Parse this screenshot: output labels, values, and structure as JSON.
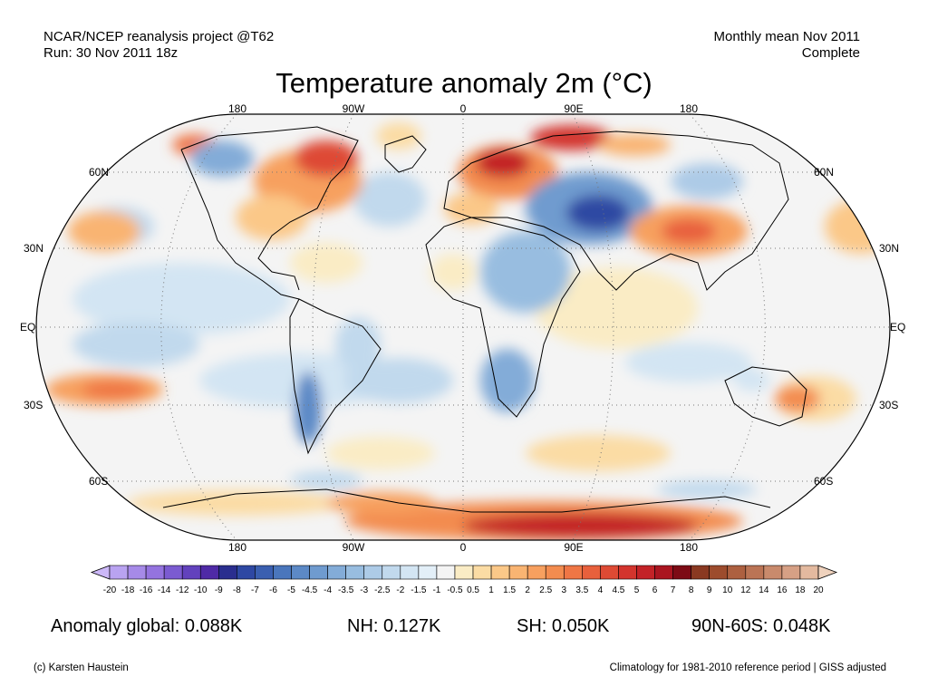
{
  "header": {
    "top_left_line1": "NCAR/NCEP reanalysis project @T62",
    "top_left_line2": "Run: 30 Nov 2011 18z",
    "top_right_line1": "Monthly mean Nov 2011",
    "top_right_line2": "Complete"
  },
  "title": "Temperature anomaly 2m (°C)",
  "map": {
    "projection": "Robinson",
    "longitude_labels": [
      "180",
      "90W",
      "0",
      "90E",
      "180"
    ],
    "latitude_labels": [
      "60N",
      "30N",
      "EQ",
      "30S",
      "60S"
    ],
    "gridlines": "dotted",
    "colors": {
      "ocean_neutral": "#f4f4f4",
      "coastline": "#000000"
    },
    "anomaly_regions": [
      {
        "name": "Northeast Canada / Greenland",
        "level": "warm-strong"
      },
      {
        "name": "Scandinavia / Northwest Russia",
        "level": "warm-strong"
      },
      {
        "name": "Siberian Arctic coast",
        "level": "warm-strong"
      },
      {
        "name": "Central Asia / Kazakhstan",
        "level": "cold-strong"
      },
      {
        "name": "Alaska",
        "level": "cold"
      },
      {
        "name": "Northeast Africa / Arabia",
        "level": "cold"
      },
      {
        "name": "Southern Africa",
        "level": "cold"
      },
      {
        "name": "Southern South America",
        "level": "cold-strong"
      },
      {
        "name": "China",
        "level": "warm"
      },
      {
        "name": "Eastern Australia",
        "level": "warm"
      },
      {
        "name": "Antarctica",
        "level": "warm-strong"
      },
      {
        "name": "Eastern United States",
        "level": "warm"
      }
    ]
  },
  "colorbar": {
    "labels": [
      "-20",
      "-18",
      "-16",
      "-14",
      "-12",
      "-10",
      "-9",
      "-8",
      "-7",
      "-6",
      "-5",
      "-4.5",
      "-4",
      "-3.5",
      "-3",
      "-2.5",
      "-2",
      "-1.5",
      "-1",
      "-0.5",
      "0.5",
      "1",
      "1.5",
      "2",
      "2.5",
      "3",
      "3.5",
      "4",
      "4.5",
      "5",
      "6",
      "7",
      "8",
      "9",
      "10",
      "12",
      "14",
      "16",
      "18",
      "20"
    ],
    "colors": [
      "#ccb8f8",
      "#b9a3f1",
      "#a68ae8",
      "#9473df",
      "#7b5bd1",
      "#6242bd",
      "#4f2aa6",
      "#2a2e8f",
      "#2e48a3",
      "#3a5fb0",
      "#4a76bc",
      "#5c89c6",
      "#6f9bcf",
      "#83acd8",
      "#98bde0",
      "#adcbe7",
      "#c1d9ed",
      "#d3e5f3",
      "#e3eff8",
      "#f4f4f4",
      "#faecc5",
      "#fbdca4",
      "#fbc888",
      "#f9b472",
      "#f7a05f",
      "#f38c4f",
      "#ef7645",
      "#e8603c",
      "#de4a34",
      "#d3342d",
      "#c32227",
      "#aa1520",
      "#7d0b15",
      "#8a3921",
      "#9d4c2d",
      "#ad6040",
      "#bb7455",
      "#c98a6c",
      "#d6a085",
      "#e3b99f",
      "#efd2bd"
    ]
  },
  "stats": {
    "global": "Anomaly global: 0.088K",
    "nh": "NH: 0.127K",
    "sh": "SH: 0.050K",
    "arctic": "90N-60S: 0.048K"
  },
  "footer": {
    "left": "(c) Karsten Haustein",
    "right": "Climatology for 1981-2010 reference period | GISS adjusted"
  }
}
